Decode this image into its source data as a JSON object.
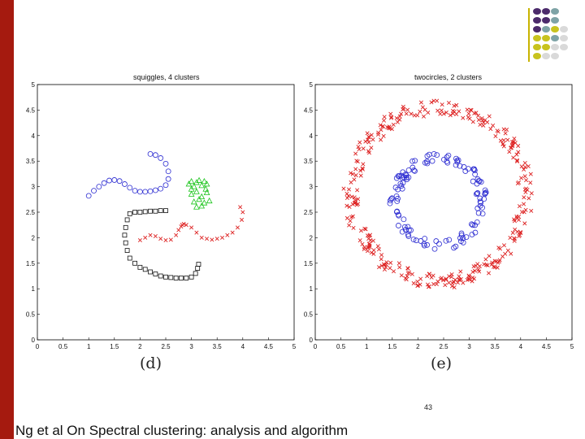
{
  "colors": {
    "left_bar": "#a51a0f",
    "deco_purple": "#4b2a6b",
    "deco_teal": "#7ea3a6",
    "deco_olive": "#c8c31e",
    "deco_gray": "#d9d9d9",
    "series_blue": "#2b2bd1",
    "series_black": "#111111",
    "series_green": "#19c419",
    "series_red": "#dd2222"
  },
  "plots": [
    {
      "title": "squiggles, 4 clusters",
      "sub_label": "(d)",
      "x_ticks": [
        "0",
        "0.5",
        "1",
        "1.5",
        "2",
        "2.5",
        "3",
        "3.5",
        "4",
        "4.5",
        "5"
      ],
      "y_ticks": [
        "0",
        "0.5",
        "1",
        "1.5",
        "2",
        "2.5",
        "3",
        "3.5",
        "4",
        "4.5",
        "5"
      ]
    },
    {
      "title": "twocircles, 2 clusters",
      "sub_label": "(e)",
      "x_ticks": [
        "0",
        "0.5",
        "1",
        "1.5",
        "2",
        "2.5",
        "3",
        "3.5",
        "4",
        "4.5",
        "5"
      ],
      "y_ticks": [
        "0",
        "0.5",
        "1",
        "1.5",
        "2",
        "2.5",
        "3",
        "3.5",
        "4",
        "4.5",
        "5"
      ]
    }
  ],
  "chart_data": [
    {
      "type": "scatter",
      "title": "squiggles, 4 clusters",
      "xlim": [
        0,
        5
      ],
      "ylim": [
        0,
        5
      ],
      "grid": false,
      "series": [
        {
          "marker": "circle",
          "color": "#2b2bd1",
          "x": [
            1.0,
            1.1,
            1.2,
            1.3,
            1.4,
            1.5,
            1.6,
            1.7,
            1.8,
            1.9,
            2.0,
            2.1,
            2.2,
            2.3,
            2.4,
            2.5,
            2.55,
            2.55,
            2.5,
            2.4,
            2.3,
            2.2
          ],
          "y": [
            2.82,
            2.92,
            3.0,
            3.07,
            3.12,
            3.13,
            3.11,
            3.05,
            2.98,
            2.92,
            2.9,
            2.9,
            2.91,
            2.93,
            2.96,
            3.03,
            3.15,
            3.3,
            3.45,
            3.56,
            3.62,
            3.64
          ]
        },
        {
          "marker": "square",
          "color": "#111111",
          "x": [
            2.5,
            2.4,
            2.3,
            2.2,
            2.1,
            2.0,
            1.9,
            1.8,
            1.75,
            1.72,
            1.7,
            1.72,
            1.75,
            1.8,
            1.9,
            2.0,
            2.1,
            2.2,
            2.3,
            2.4,
            2.5,
            2.6,
            2.7,
            2.8,
            2.9,
            3.0,
            3.08,
            3.12,
            3.14
          ],
          "y": [
            2.53,
            2.53,
            2.52,
            2.52,
            2.51,
            2.5,
            2.5,
            2.47,
            2.35,
            2.2,
            2.05,
            1.9,
            1.75,
            1.6,
            1.5,
            1.42,
            1.38,
            1.33,
            1.29,
            1.25,
            1.23,
            1.22,
            1.21,
            1.21,
            1.21,
            1.23,
            1.3,
            1.4,
            1.48
          ]
        },
        {
          "marker": "triangle",
          "color": "#19c419",
          "x": [
            2.95,
            3.0,
            3.05,
            3.1,
            3.15,
            3.2,
            3.25,
            3.3,
            3.0,
            3.1,
            3.2,
            3.3,
            3.05,
            3.15,
            3.25,
            3.35,
            3.1,
            3.2,
            3.0,
            3.28
          ],
          "y": [
            3.05,
            3.1,
            3.0,
            3.08,
            3.12,
            3.02,
            3.1,
            3.05,
            2.85,
            2.9,
            2.8,
            2.88,
            2.7,
            2.75,
            2.68,
            2.72,
            2.6,
            2.62,
            2.95,
            2.95
          ]
        },
        {
          "marker": "x",
          "color": "#dd2222",
          "x": [
            2.0,
            2.1,
            2.2,
            2.3,
            2.4,
            2.5,
            2.6,
            2.7,
            2.75,
            2.8,
            2.82,
            2.85,
            2.9,
            3.0,
            3.1,
            3.2,
            3.3,
            3.4,
            3.5,
            3.6,
            3.7,
            3.8,
            3.9,
            3.98,
            4.0,
            3.95
          ],
          "y": [
            1.95,
            2.0,
            2.05,
            2.03,
            1.98,
            1.95,
            1.96,
            2.05,
            2.15,
            2.22,
            2.25,
            2.27,
            2.25,
            2.2,
            2.1,
            2.0,
            1.98,
            1.96,
            1.98,
            2.0,
            2.05,
            2.1,
            2.2,
            2.35,
            2.5,
            2.6
          ]
        }
      ]
    },
    {
      "type": "scatter",
      "title": "twocircles, 2 clusters",
      "xlim": [
        0,
        5
      ],
      "ylim": [
        0,
        5
      ],
      "grid": false,
      "series": [
        {
          "marker": "circle",
          "color": "#2b2bd1",
          "center": [
            2.4,
            2.7
          ],
          "radius": [
            0.75,
            0.95
          ],
          "count": 120
        },
        {
          "marker": "x",
          "color": "#dd2222",
          "center": [
            2.4,
            2.85
          ],
          "radius": [
            1.55,
            1.85
          ],
          "count": 330
        }
      ]
    }
  ],
  "slide_number": "43",
  "footer_text": "Ng et al On Spectral clustering: analysis and algorithm"
}
